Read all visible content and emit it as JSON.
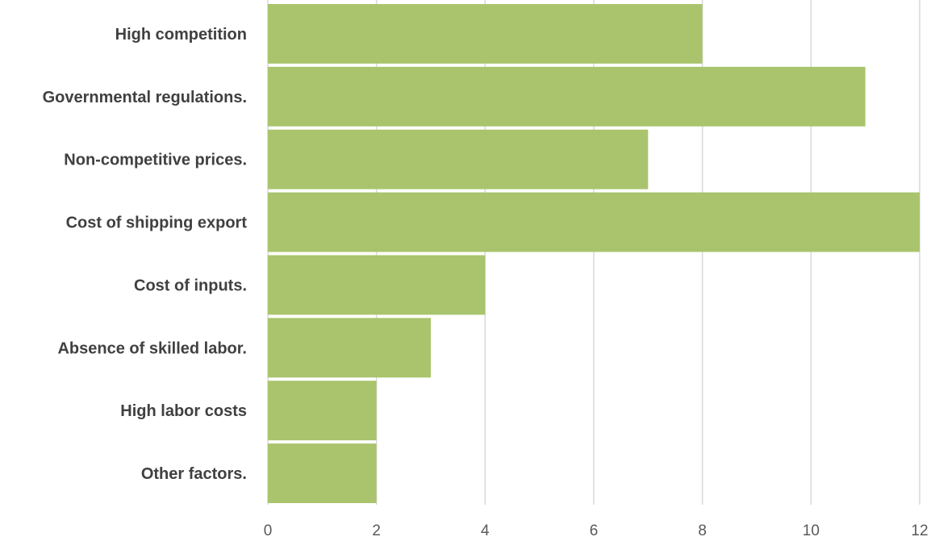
{
  "chart_data": {
    "type": "bar",
    "orientation": "horizontal",
    "title": "",
    "xlabel": "",
    "ylabel": "",
    "categories": [
      "High competition",
      "Governmental regulations.",
      "Non-competitive prices.",
      "Cost of shipping export",
      "Cost of inputs.",
      "Absence of skilled labor.",
      "High labor costs",
      "Other factors."
    ],
    "values": [
      8,
      11,
      7,
      12,
      4,
      3,
      2,
      2
    ],
    "xlim": [
      0,
      12
    ],
    "xticks": [
      "0",
      "2",
      "4",
      "6",
      "8",
      "10",
      "12"
    ],
    "grid": "vertical",
    "legend": "none",
    "bar_color": "#a9c46c"
  }
}
